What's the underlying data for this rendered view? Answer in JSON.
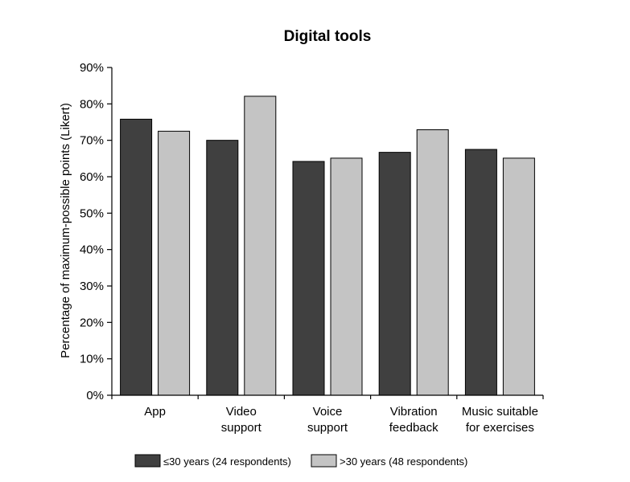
{
  "chart_data": {
    "type": "bar",
    "title": "Digital tools",
    "ylabel": "Percentage of maximum-possible points (Likert)",
    "xlabel": "",
    "ylim": [
      0,
      90
    ],
    "yticks": [
      0,
      10,
      20,
      30,
      40,
      50,
      60,
      70,
      80,
      90
    ],
    "ytick_labels": [
      "0%",
      "10%",
      "20%",
      "30%",
      "40%",
      "50%",
      "60%",
      "70%",
      "80%",
      "90%"
    ],
    "categories": [
      [
        "App"
      ],
      [
        "Video",
        "support"
      ],
      [
        "Voice",
        "support"
      ],
      [
        "Vibration",
        "feedback"
      ],
      [
        "Music suitable",
        "for exercises"
      ]
    ],
    "series": [
      {
        "name": "≤30 years (24 respondents)",
        "color": "#404040",
        "values": [
          75.8,
          70.0,
          64.2,
          66.7,
          67.5
        ]
      },
      {
        "name": ">30 years (48 respondents)",
        "color": "#c4c4c4",
        "values": [
          72.5,
          82.1,
          65.1,
          72.9,
          65.1
        ]
      }
    ],
    "grid": false,
    "legend": "bottom"
  }
}
